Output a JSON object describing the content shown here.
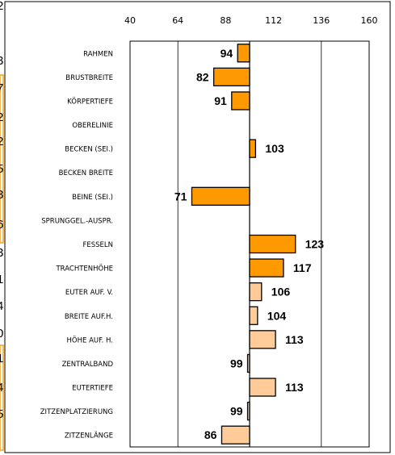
{
  "chart_data": {
    "type": "bar",
    "orientation": "horizontal",
    "baseline": 100,
    "xlim": [
      40,
      160
    ],
    "x_ticks": [
      40,
      64,
      88,
      112,
      136,
      160
    ],
    "x_tick_labels": [
      "40",
      "64",
      "88",
      "112",
      "136",
      "160"
    ],
    "x_ticks_position": "top",
    "vertical_gridlines": [
      64,
      100,
      136
    ],
    "categories": [
      "RAHMEN",
      "BRUSTBREITE",
      "KÖRPERTIEFE",
      "OBERELINIE",
      "BECKEN (SEI.)",
      "BECKEN BREITE",
      "BEINE (SEI.)",
      "SPRUNGGEL.-AUSPR.",
      "FESSELN",
      "TRACHTENHÖHE",
      "EUTER AUF. V.",
      "BREITE AUF.H.",
      "HÖHE AUF. H.",
      "ZENTRALBAND",
      "EUTERTIEFE",
      "ZITZENPLATZIERUNG",
      "ZITZENLÄNGE"
    ],
    "values": [
      94,
      82,
      91,
      null,
      103,
      null,
      71,
      null,
      123,
      117,
      106,
      104,
      113,
      99,
      113,
      99,
      86
    ],
    "value_labels": [
      "94",
      "82",
      "91",
      "",
      "103",
      "",
      "71",
      "",
      "123",
      "117",
      "106",
      "104",
      "113",
      "99",
      "113",
      "99",
      "86"
    ],
    "bar_colors": [
      "#ff9900",
      "#ff9900",
      "#ff9900",
      "#ff9900",
      "#ff9900",
      "#ff9900",
      "#ff9900",
      "#ff9900",
      "#ff9900",
      "#ff9900",
      "#ffcc99",
      "#ffcc99",
      "#ffcc99",
      "#ffcc99",
      "#ffcc99",
      "#ffcc99",
      "#ffcc99"
    ],
    "bar_stroke": "#000000",
    "title": "",
    "xlabel": "",
    "ylabel": "",
    "legend": "none"
  },
  "edge_digits": [
    "2",
    "3",
    "7",
    "2",
    "2",
    "5",
    "3",
    "6",
    "3",
    "1",
    "4",
    "0",
    "1",
    "4",
    "5"
  ]
}
